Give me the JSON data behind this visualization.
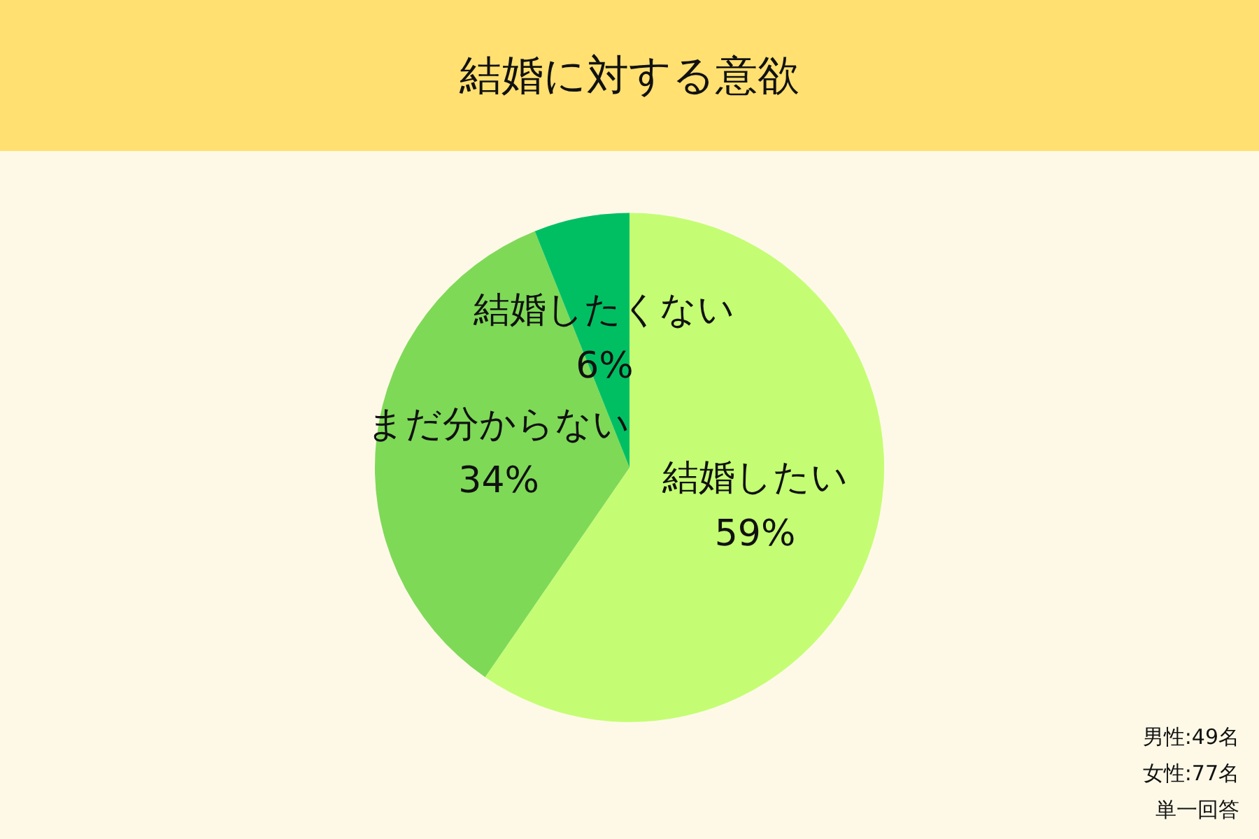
{
  "chart_data": {
    "type": "pie",
    "title": "結婚に対する意欲",
    "categories": [
      "結婚したい",
      "まだ分からない",
      "結婚したくない"
    ],
    "values": [
      59,
      34,
      6
    ],
    "value_labels": [
      "59%",
      "34%",
      "6%"
    ],
    "colors": [
      "#c4fd73",
      "#7ed957",
      "#00bf63"
    ],
    "legend": false,
    "annotations": [
      "男性:49名",
      "女性:77名",
      "単一回答"
    ]
  }
}
